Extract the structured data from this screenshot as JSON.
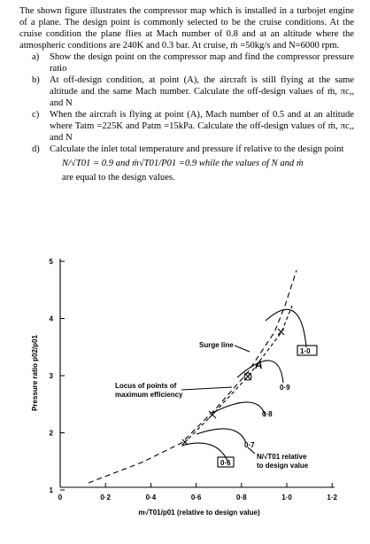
{
  "intro": "The shown figure illustrates the compressor map which is installed in a turbojet engine of a plane. The design point is commonly selected to be the cruise conditions. At the cruise condition the plane flies at Mach number of 0.8 and at an altitude where the atmospheric conditions are 240K and 0.3 bar. At cruise, ṁ =50kg/s and N=6000 rpm.",
  "items": [
    {
      "label": "a)",
      "text": "Show the design point on the compressor map and find the compressor pressure ratio"
    },
    {
      "label": "b)",
      "text": "At off-design condition, at point (A), the aircraft is still flying at the same altitude and the same Mach number. Calculate the off-design values of ṁ, πc,, and N"
    },
    {
      "label": "c)",
      "text": "When the aircraft is flying at point (A), Mach number of 0.5 and at an altitude where Tatm =225K and Patm =15kPa. Calculate the off-design values of ṁ, πc,, and N"
    },
    {
      "label": "d)",
      "text": "Calculate the inlet total temperature and pressure if relative to the design point",
      "formula": "N/√T01 = 0.9 and ṁ√T01/P01 =0.9 while the values of N and ṁ",
      "tail": "are equal to the design values."
    }
  ],
  "figure": {
    "y_title": "Pressure ratio p02/p01",
    "x_title": "m√T01/p01 (relative to design value)",
    "yticks": [
      "1",
      "2",
      "3",
      "4",
      "5"
    ],
    "xticks": [
      "0",
      "0·2",
      "0·4",
      "0·6",
      "0·8",
      "1·0",
      "1·2"
    ],
    "surge_label": "Surge line",
    "locus_label": [
      "Locus of points of",
      "maximum efficiency"
    ],
    "point_label": "A",
    "speed_labels": [
      "0·6",
      "0·7",
      "0·8",
      "0·9",
      "1·0"
    ],
    "speed_title": [
      "N/√T01 relative",
      "to design value"
    ]
  }
}
